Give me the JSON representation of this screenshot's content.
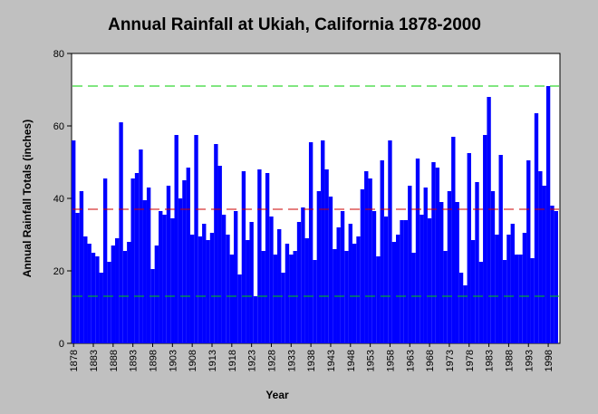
{
  "chart_data": {
    "type": "bar",
    "title": "Annual Rainfall at Ukiah, California 1878-2000",
    "xlabel": "Year",
    "ylabel": "Annual Rainfall Totals (inches)",
    "ylim": [
      0,
      80
    ],
    "yticks": [
      0,
      20,
      40,
      60,
      80
    ],
    "xtick_labels": [
      "1878",
      "1883",
      "1888",
      "1893",
      "1898",
      "1903",
      "1908",
      "1913",
      "1918",
      "1923",
      "1928",
      "1933",
      "1938",
      "1943",
      "1948",
      "1953",
      "1958",
      "1963",
      "1968",
      "1973",
      "1978",
      "1983",
      "1988",
      "1993",
      "1998"
    ],
    "grid": false,
    "bar_color": "#0000ff",
    "reference_lines": [
      {
        "value": 71,
        "color": "#00cc00",
        "style": "dashed"
      },
      {
        "value": 37,
        "color": "#cc0000",
        "style": "dashed"
      },
      {
        "value": 13,
        "color": "#00cc00",
        "style": "dashed"
      }
    ],
    "x": [
      1878,
      1879,
      1880,
      1881,
      1882,
      1883,
      1884,
      1885,
      1886,
      1887,
      1888,
      1889,
      1890,
      1891,
      1892,
      1893,
      1894,
      1895,
      1896,
      1897,
      1898,
      1899,
      1900,
      1901,
      1902,
      1903,
      1904,
      1905,
      1906,
      1907,
      1908,
      1909,
      1910,
      1911,
      1912,
      1913,
      1914,
      1915,
      1916,
      1917,
      1918,
      1919,
      1920,
      1921,
      1922,
      1923,
      1924,
      1925,
      1926,
      1927,
      1928,
      1929,
      1930,
      1931,
      1932,
      1933,
      1934,
      1935,
      1936,
      1937,
      1938,
      1939,
      1940,
      1941,
      1942,
      1943,
      1944,
      1945,
      1946,
      1947,
      1948,
      1949,
      1950,
      1951,
      1952,
      1953,
      1954,
      1955,
      1956,
      1957,
      1958,
      1959,
      1960,
      1961,
      1962,
      1963,
      1964,
      1965,
      1966,
      1967,
      1968,
      1969,
      1970,
      1971,
      1972,
      1973,
      1974,
      1975,
      1976,
      1977,
      1978,
      1979,
      1980,
      1981,
      1982,
      1983,
      1984,
      1985,
      1986,
      1987,
      1988,
      1989,
      1990,
      1991,
      1992,
      1993,
      1994,
      1995,
      1996,
      1997,
      1998,
      1999,
      2000
    ],
    "values": [
      56,
      36,
      42,
      29.5,
      27.5,
      25,
      24,
      19.5,
      45.5,
      22.5,
      27,
      29,
      61,
      25.5,
      28,
      45.5,
      47,
      53.5,
      39.5,
      43,
      20.5,
      27,
      36.5,
      35.5,
      43.5,
      34.5,
      57.5,
      40,
      45,
      48.5,
      30,
      57.5,
      29.5,
      33,
      28.5,
      30.5,
      55,
      49,
      35.5,
      30,
      24.5,
      36.5,
      19,
      47.5,
      28.5,
      33.5,
      13,
      48,
      25.5,
      47,
      35,
      24.5,
      31.5,
      19.5,
      27.5,
      24.5,
      25.5,
      33.5,
      37.5,
      29,
      55.5,
      23,
      42,
      56,
      48,
      40.5,
      26,
      32,
      36.5,
      25.5,
      33,
      27.5,
      29.5,
      42.5,
      47.5,
      45.5,
      36.5,
      24,
      50.5,
      35,
      56,
      28,
      30,
      34,
      34,
      43.5,
      25,
      51,
      35.5,
      43,
      34.5,
      50,
      48.5,
      39,
      25.5,
      42,
      57,
      39,
      19.5,
      16,
      52.5,
      28.5,
      44.5,
      22.5,
      57.5,
      68,
      42,
      30,
      52,
      23,
      30,
      33,
      24.5,
      24.5,
      30.5,
      50.5,
      23.5,
      63.5,
      47.5,
      43.5,
      71,
      38,
      36.5
    ]
  }
}
